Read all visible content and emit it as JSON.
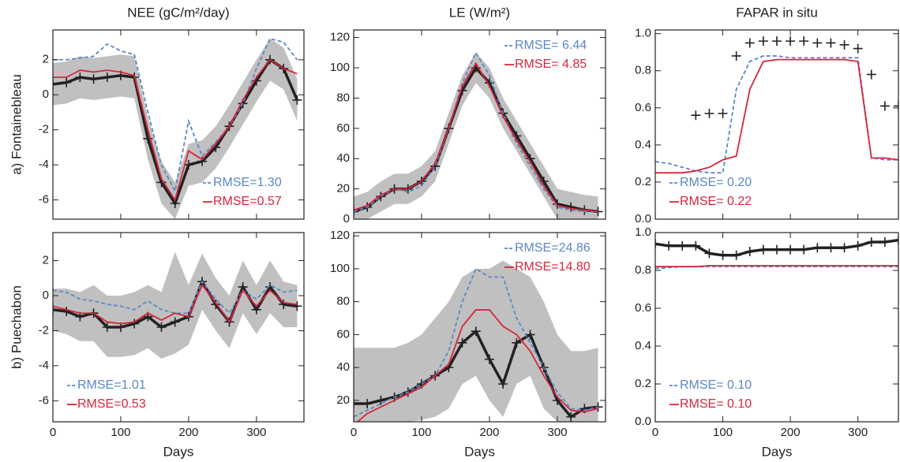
{
  "chart_data": [
    {
      "type": "line",
      "title": "NEE (gC/m²/day)",
      "ylabel": "a) Fontainebleau",
      "legend": "lower right",
      "x": [
        0,
        20,
        40,
        60,
        80,
        100,
        120,
        140,
        160,
        180,
        200,
        220,
        240,
        260,
        280,
        300,
        320,
        340,
        360
      ],
      "xlim": [
        0,
        370
      ],
      "xticks": [
        0,
        100,
        200,
        300
      ],
      "show_xtick_labels": false,
      "ylim": [
        -7.1,
        3.7
      ],
      "yticks": [
        -6,
        -4,
        -2,
        0,
        2
      ],
      "band": {
        "color": "#c0c0c0",
        "lower": [
          -0.6,
          -0.5,
          -0.2,
          -0.3,
          -0.2,
          -0.1,
          -0.2,
          -3.7,
          -6.2,
          -7.1,
          -5.2,
          -5.0,
          -4.2,
          -3.0,
          -1.7,
          -0.4,
          0.8,
          0.3,
          -1.5
        ],
        "upper": [
          1.8,
          1.9,
          2.2,
          2.1,
          2.2,
          2.3,
          2.2,
          -1.3,
          -3.8,
          -5.0,
          -2.8,
          -2.6,
          -1.8,
          -0.6,
          0.7,
          2.0,
          3.2,
          2.7,
          0.9
        ]
      },
      "series": [
        {
          "color": "#222222",
          "style": "marker-line",
          "values": [
            0.6,
            0.7,
            1.0,
            0.9,
            1.0,
            1.1,
            1.0,
            -2.5,
            -5.0,
            -6.2,
            -4.0,
            -3.8,
            -3.0,
            -1.8,
            -0.5,
            0.8,
            2.0,
            1.5,
            -0.3
          ]
        },
        {
          "name": "RMSE=1.30",
          "color": "#5b87c5",
          "style": "dashed",
          "values": [
            2.0,
            2.0,
            2.1,
            2.2,
            2.9,
            2.5,
            2.3,
            -1.0,
            -4.0,
            -5.5,
            -1.5,
            -3.5,
            -2.7,
            -1.8,
            -0.5,
            1.5,
            3.2,
            3.0,
            2.0
          ]
        },
        {
          "name": "RMSE=0.57",
          "color": "#d7263d",
          "style": "solid",
          "values": [
            1.0,
            1.0,
            1.4,
            1.3,
            1.4,
            1.3,
            1.1,
            -2.0,
            -4.8,
            -6.0,
            -3.2,
            -3.7,
            -2.8,
            -1.8,
            -0.3,
            1.0,
            2.0,
            1.5,
            1.2
          ]
        }
      ]
    },
    {
      "type": "line",
      "title": "LE (W/m²)",
      "legend": "upper right",
      "x": [
        0,
        20,
        40,
        60,
        80,
        100,
        120,
        140,
        160,
        180,
        200,
        220,
        240,
        260,
        280,
        300,
        320,
        340,
        360
      ],
      "xlim": [
        0,
        371
      ],
      "xticks": [
        0,
        100,
        200,
        300
      ],
      "show_xtick_labels": false,
      "ylim": [
        0,
        125
      ],
      "yticks": [
        0,
        20,
        40,
        60,
        80,
        100,
        120
      ],
      "band": {
        "color": "#c0c0c0",
        "lower": [
          0,
          0,
          5,
          10,
          10,
          15,
          25,
          50,
          75,
          90,
          80,
          60,
          45,
          30,
          15,
          0,
          0,
          0,
          0
        ],
        "upper": [
          15,
          18,
          25,
          30,
          30,
          35,
          45,
          70,
          95,
          110,
          100,
          80,
          65,
          50,
          35,
          20,
          18,
          16,
          15
        ]
      },
      "series": [
        {
          "color": "#222222",
          "style": "marker-line",
          "values": [
            5,
            8,
            15,
            20,
            20,
            25,
            35,
            60,
            85,
            100,
            90,
            70,
            55,
            40,
            25,
            10,
            8,
            6,
            5
          ]
        },
        {
          "name": "RMSE= 6.44",
          "color": "#5b87c5",
          "style": "dashed",
          "values": [
            5,
            8,
            15,
            20,
            18,
            22,
            35,
            60,
            90,
            110,
            95,
            70,
            50,
            35,
            20,
            8,
            6,
            5,
            5
          ]
        },
        {
          "name": "RMSE= 4.85",
          "color": "#d7263d",
          "style": "solid",
          "values": [
            6,
            9,
            16,
            20,
            20,
            25,
            37,
            60,
            88,
            103,
            88,
            68,
            52,
            38,
            22,
            9,
            7,
            6,
            5
          ]
        }
      ]
    },
    {
      "type": "line",
      "title": "FAPAR in situ",
      "legend": "lower left",
      "x": [
        0,
        20,
        40,
        60,
        80,
        100,
        120,
        140,
        160,
        180,
        200,
        220,
        240,
        260,
        280,
        300,
        320,
        340,
        360
      ],
      "xlim": [
        0,
        360
      ],
      "xticks": [
        0,
        100,
        200,
        300
      ],
      "show_xtick_labels": false,
      "ylim": [
        0,
        1.02
      ],
      "yticks": [
        {
          "value": 0,
          "label": "0.0"
        },
        0.2,
        0.4,
        0.6,
        0.8,
        {
          "value": 1,
          "label": "1.0"
        }
      ],
      "series": [
        {
          "color": "#222222",
          "style": "markers",
          "values": [
            null,
            null,
            null,
            0.56,
            0.57,
            0.57,
            0.88,
            0.95,
            0.96,
            0.96,
            0.96,
            0.96,
            0.95,
            0.95,
            0.94,
            0.92,
            0.78,
            0.61,
            0.61
          ]
        },
        {
          "name": "RMSE=  0.20",
          "color": "#5b87c5",
          "style": "dashed",
          "values": [
            0.31,
            0.3,
            0.28,
            0.26,
            0.25,
            0.25,
            0.7,
            0.85,
            0.88,
            0.88,
            0.87,
            0.87,
            0.87,
            0.87,
            0.87,
            0.87,
            0.33,
            0.32,
            0.32
          ]
        },
        {
          "name": "RMSE=  0.22",
          "color": "#d7263d",
          "style": "solid",
          "values": [
            0.25,
            0.25,
            0.25,
            0.26,
            0.28,
            0.32,
            0.34,
            0.7,
            0.85,
            0.86,
            0.86,
            0.86,
            0.86,
            0.86,
            0.86,
            0.85,
            0.33,
            0.33,
            0.32
          ]
        }
      ]
    },
    {
      "type": "line",
      "ylabel": "b) Puechabon",
      "xlabel": "Days",
      "legend": "lower left",
      "x": [
        0,
        20,
        40,
        60,
        80,
        100,
        120,
        140,
        160,
        180,
        200,
        220,
        240,
        260,
        280,
        300,
        320,
        340,
        360
      ],
      "xlim": [
        0,
        370
      ],
      "xticks": [
        0,
        100,
        200,
        300
      ],
      "show_xtick_labels": true,
      "ylim": [
        -7.2,
        3.6
      ],
      "yticks": [
        -6,
        -4,
        -2,
        0,
        2
      ],
      "band": {
        "color": "#c0c0c0",
        "lower": [
          -2.0,
          -2.2,
          -2.6,
          -2.6,
          -3.5,
          -3.5,
          -3.4,
          -3.0,
          -3.6,
          -3.3,
          -2.8,
          -0.8,
          -2.0,
          -3.0,
          -1.0,
          -2.2,
          -1.0,
          -1.8,
          -1.8
        ],
        "upper": [
          0.4,
          0.4,
          0.2,
          0.6,
          0.0,
          0.0,
          0.2,
          0.6,
          0.2,
          2.5,
          0.6,
          2.4,
          1.0,
          0.0,
          2.0,
          0.6,
          2.0,
          0.8,
          0.6
        ]
      },
      "series": [
        {
          "color": "#222222",
          "style": "marker-line",
          "values": [
            -0.8,
            -0.9,
            -1.2,
            -1.0,
            -1.8,
            -1.8,
            -1.6,
            -1.2,
            -1.8,
            -1.5,
            -1.2,
            0.8,
            -0.5,
            -1.5,
            0.5,
            -0.8,
            0.5,
            -0.5,
            -0.6
          ]
        },
        {
          "name": "RMSE=1.01",
          "color": "#5b87c5",
          "style": "dashed",
          "values": [
            0.3,
            0.2,
            -0.2,
            -0.3,
            -0.5,
            -0.6,
            -0.8,
            -0.3,
            -0.8,
            -1.0,
            -1.0,
            0.8,
            -0.2,
            -1.0,
            0.3,
            -0.2,
            0.6,
            0.2,
            0.3
          ]
        },
        {
          "name": "RMSE=0.53",
          "color": "#d7263d",
          "style": "solid",
          "values": [
            -0.6,
            -0.8,
            -1.0,
            -1.0,
            -1.5,
            -1.6,
            -1.5,
            -1.0,
            -1.4,
            -1.0,
            -1.2,
            0.6,
            -0.4,
            -1.5,
            0.3,
            -0.6,
            0.3,
            -0.4,
            -0.5
          ]
        }
      ]
    },
    {
      "type": "line",
      "xlabel": "Days",
      "legend": "upper right",
      "x": [
        0,
        20,
        40,
        60,
        80,
        100,
        120,
        140,
        160,
        180,
        200,
        220,
        240,
        260,
        280,
        300,
        320,
        340,
        360
      ],
      "xlim": [
        0,
        371
      ],
      "xticks": [
        0,
        100,
        200,
        300
      ],
      "show_xtick_labels": true,
      "ylim": [
        7,
        122
      ],
      "yticks": [
        20,
        40,
        60,
        80,
        100,
        120
      ],
      "band": {
        "color": "#c0c0c0",
        "lower": [
          7,
          7,
          7,
          7,
          7,
          8,
          10,
          15,
          30,
          35,
          20,
          10,
          30,
          35,
          15,
          7,
          7,
          7,
          7
        ],
        "upper": [
          52,
          52,
          52,
          52,
          55,
          60,
          70,
          80,
          95,
          100,
          100,
          105,
          100,
          95,
          80,
          60,
          50,
          50,
          52
        ]
      },
      "series": [
        {
          "color": "#222222",
          "style": "marker-line",
          "values": [
            18,
            18,
            20,
            22,
            25,
            30,
            35,
            40,
            55,
            62,
            45,
            30,
            55,
            60,
            40,
            20,
            10,
            15,
            16
          ]
        },
        {
          "name": "RMSE=24.86",
          "color": "#5b87c5",
          "style": "dashed",
          "values": [
            10,
            14,
            18,
            22,
            25,
            30,
            35,
            50,
            80,
            100,
            95,
            95,
            70,
            55,
            40,
            25,
            15,
            14,
            16
          ]
        },
        {
          "name": "RMSE=14.80",
          "color": "#d7263d",
          "style": "solid",
          "values": [
            5,
            12,
            16,
            20,
            24,
            28,
            35,
            42,
            65,
            75,
            75,
            65,
            60,
            50,
            35,
            22,
            14,
            13,
            15
          ]
        }
      ]
    },
    {
      "type": "line",
      "xlabel": "Days",
      "legend": "lower left",
      "x": [
        0,
        20,
        40,
        60,
        80,
        100,
        120,
        140,
        160,
        180,
        200,
        220,
        240,
        260,
        280,
        300,
        320,
        340,
        360
      ],
      "xlim": [
        0,
        360
      ],
      "xticks": [
        0,
        100,
        200,
        300
      ],
      "show_xtick_labels": true,
      "ylim": [
        0,
        1.0
      ],
      "yticks": [
        {
          "value": 0,
          "label": "0.0"
        },
        0.2,
        0.4,
        0.6,
        0.8,
        {
          "value": 1,
          "label": "1.0"
        }
      ],
      "series": [
        {
          "color": "#222222",
          "style": "marker-line",
          "values": [
            0.94,
            0.93,
            0.93,
            0.93,
            0.89,
            0.88,
            0.88,
            0.9,
            0.91,
            0.91,
            0.91,
            0.91,
            0.92,
            0.92,
            0.92,
            0.93,
            0.95,
            0.95,
            0.96
          ]
        },
        {
          "name": "RMSE= 0.10",
          "color": "#5b87c5",
          "style": "dashed",
          "values": [
            0.81,
            0.815,
            0.82,
            0.82,
            0.82,
            0.82,
            0.82,
            0.82,
            0.82,
            0.82,
            0.82,
            0.82,
            0.82,
            0.82,
            0.82,
            0.82,
            0.82,
            0.82,
            0.82
          ]
        },
        {
          "name": "RMSE= 0.10",
          "color": "#d7263d",
          "style": "solid",
          "values": [
            0.82,
            0.82,
            0.82,
            0.82,
            0.825,
            0.825,
            0.825,
            0.825,
            0.825,
            0.825,
            0.825,
            0.825,
            0.825,
            0.825,
            0.825,
            0.825,
            0.825,
            0.825,
            0.825
          ]
        }
      ]
    }
  ]
}
